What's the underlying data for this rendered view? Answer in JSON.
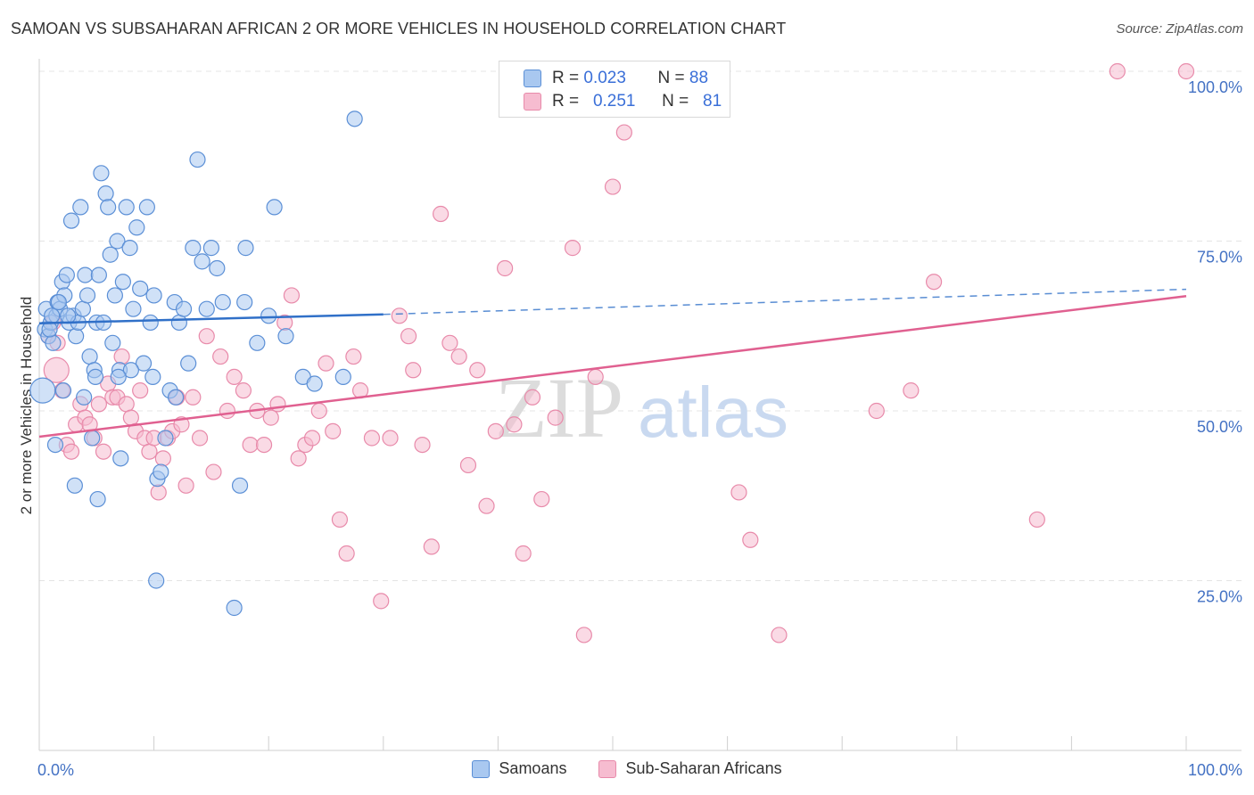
{
  "header": {
    "title": "SAMOAN VS SUBSAHARAN AFRICAN 2 OR MORE VEHICLES IN HOUSEHOLD CORRELATION CHART",
    "source": "Source: ZipAtlas.com"
  },
  "legend": {
    "rows": [
      {
        "r_label": "R =",
        "r_value": "0.023",
        "n_label": "N =",
        "n_value": "88"
      },
      {
        "r_label": "R =",
        "r_value": "0.251",
        "n_label": "N =",
        "n_value": "81"
      }
    ]
  },
  "watermark": {
    "zip": "ZIP",
    "atlas": "atlas"
  },
  "colors": {
    "samoans_fill": "#a9c8f0",
    "samoans_stroke": "#5b8fd6",
    "samoans_line": "#3070c8",
    "subsaharan_fill": "#f6bcd0",
    "subsaharan_stroke": "#e88aaa",
    "subsaharan_line": "#e06090",
    "tick_text": "#4472c4",
    "grid": "#e4e4e4"
  },
  "chart_data": {
    "type": "scatter",
    "title": "SAMOAN VS SUBSAHARAN AFRICAN 2 OR MORE VEHICLES IN HOUSEHOLD CORRELATION CHART",
    "xlabel": "",
    "ylabel": "2 or more Vehicles in Household",
    "xlim": [
      0,
      100
    ],
    "ylim": [
      0,
      100
    ],
    "x_tick_labels": [
      "0.0%",
      "100.0%"
    ],
    "y_ticks": [
      25,
      50,
      75,
      100
    ],
    "y_tick_labels": [
      "25.0%",
      "50.0%",
      "75.0%",
      "100.0%"
    ],
    "grid": true,
    "legend_position": "bottom-center",
    "series": [
      {
        "name": "Samoans",
        "r": 0.023,
        "n": 88,
        "trend": {
          "x0": 0,
          "y0": 62.9,
          "x1": 30,
          "y1": 64.2,
          "dashed_to_x": 100,
          "dashed_to_y": 67.9
        },
        "points": [
          {
            "x": 0.3,
            "y": 53,
            "big": true
          },
          {
            "x": 0.5,
            "y": 62
          },
          {
            "x": 0.8,
            "y": 61
          },
          {
            "x": 0.6,
            "y": 65
          },
          {
            "x": 1.0,
            "y": 63
          },
          {
            "x": 1.2,
            "y": 60
          },
          {
            "x": 1.5,
            "y": 64
          },
          {
            "x": 1.6,
            "y": 66
          },
          {
            "x": 1.8,
            "y": 65
          },
          {
            "x": 2.0,
            "y": 69
          },
          {
            "x": 2.2,
            "y": 67
          },
          {
            "x": 2.4,
            "y": 70
          },
          {
            "x": 2.6,
            "y": 63
          },
          {
            "x": 2.8,
            "y": 78
          },
          {
            "x": 3.0,
            "y": 64
          },
          {
            "x": 3.2,
            "y": 61
          },
          {
            "x": 3.4,
            "y": 63
          },
          {
            "x": 3.6,
            "y": 80
          },
          {
            "x": 3.8,
            "y": 65
          },
          {
            "x": 4.0,
            "y": 70
          },
          {
            "x": 4.2,
            "y": 67
          },
          {
            "x": 4.4,
            "y": 58
          },
          {
            "x": 4.6,
            "y": 46
          },
          {
            "x": 4.8,
            "y": 56
          },
          {
            "x": 5.0,
            "y": 63
          },
          {
            "x": 5.2,
            "y": 70
          },
          {
            "x": 5.4,
            "y": 85
          },
          {
            "x": 5.6,
            "y": 63
          },
          {
            "x": 5.8,
            "y": 82
          },
          {
            "x": 6.0,
            "y": 80
          },
          {
            "x": 6.2,
            "y": 73
          },
          {
            "x": 6.4,
            "y": 60
          },
          {
            "x": 6.6,
            "y": 67
          },
          {
            "x": 6.8,
            "y": 75
          },
          {
            "x": 7.0,
            "y": 56
          },
          {
            "x": 7.3,
            "y": 69
          },
          {
            "x": 7.6,
            "y": 80
          },
          {
            "x": 7.9,
            "y": 74
          },
          {
            "x": 8.2,
            "y": 65
          },
          {
            "x": 8.5,
            "y": 77
          },
          {
            "x": 8.8,
            "y": 68
          },
          {
            "x": 9.1,
            "y": 57
          },
          {
            "x": 9.4,
            "y": 80
          },
          {
            "x": 9.7,
            "y": 63
          },
          {
            "x": 10.0,
            "y": 67
          },
          {
            "x": 10.3,
            "y": 40
          },
          {
            "x": 10.6,
            "y": 41
          },
          {
            "x": 11.0,
            "y": 46
          },
          {
            "x": 11.4,
            "y": 53
          },
          {
            "x": 11.8,
            "y": 66
          },
          {
            "x": 12.2,
            "y": 63
          },
          {
            "x": 12.6,
            "y": 65
          },
          {
            "x": 13.0,
            "y": 57
          },
          {
            "x": 13.4,
            "y": 74
          },
          {
            "x": 13.8,
            "y": 87
          },
          {
            "x": 14.2,
            "y": 72
          },
          {
            "x": 14.6,
            "y": 65
          },
          {
            "x": 15.0,
            "y": 74
          },
          {
            "x": 15.5,
            "y": 71
          },
          {
            "x": 16.0,
            "y": 66
          },
          {
            "x": 17.0,
            "y": 21
          },
          {
            "x": 18.0,
            "y": 74
          },
          {
            "x": 17.5,
            "y": 39
          },
          {
            "x": 10.2,
            "y": 25
          },
          {
            "x": 1.4,
            "y": 45
          },
          {
            "x": 3.1,
            "y": 39
          },
          {
            "x": 5.1,
            "y": 37
          },
          {
            "x": 7.1,
            "y": 43
          },
          {
            "x": 8.0,
            "y": 56
          },
          {
            "x": 3.9,
            "y": 52
          },
          {
            "x": 2.1,
            "y": 53
          },
          {
            "x": 1.1,
            "y": 64
          },
          {
            "x": 0.9,
            "y": 62
          },
          {
            "x": 4.9,
            "y": 55
          },
          {
            "x": 6.9,
            "y": 55
          },
          {
            "x": 9.9,
            "y": 55
          },
          {
            "x": 11.9,
            "y": 52
          },
          {
            "x": 17.9,
            "y": 66
          },
          {
            "x": 19.0,
            "y": 60
          },
          {
            "x": 20.0,
            "y": 64
          },
          {
            "x": 20.5,
            "y": 80
          },
          {
            "x": 21.5,
            "y": 61
          },
          {
            "x": 23.0,
            "y": 55
          },
          {
            "x": 24.0,
            "y": 54
          },
          {
            "x": 26.5,
            "y": 55
          },
          {
            "x": 27.5,
            "y": 93
          },
          {
            "x": 1.7,
            "y": 66
          },
          {
            "x": 2.5,
            "y": 64
          }
        ]
      },
      {
        "name": "Sub-Saharan Africans",
        "r": 0.251,
        "n": 81,
        "trend": {
          "x0": 0,
          "y0": 46.2,
          "x1": 100,
          "y1": 66.9
        },
        "points": [
          {
            "x": 1.5,
            "y": 56,
            "big": true
          },
          {
            "x": 0.8,
            "y": 61
          },
          {
            "x": 1.2,
            "y": 63
          },
          {
            "x": 1.6,
            "y": 60
          },
          {
            "x": 2.0,
            "y": 53
          },
          {
            "x": 2.4,
            "y": 45
          },
          {
            "x": 2.8,
            "y": 44
          },
          {
            "x": 3.2,
            "y": 48
          },
          {
            "x": 3.6,
            "y": 51
          },
          {
            "x": 4.0,
            "y": 49
          },
          {
            "x": 4.4,
            "y": 48
          },
          {
            "x": 4.8,
            "y": 46
          },
          {
            "x": 5.2,
            "y": 51
          },
          {
            "x": 5.6,
            "y": 44
          },
          {
            "x": 6.0,
            "y": 54
          },
          {
            "x": 6.4,
            "y": 52
          },
          {
            "x": 6.8,
            "y": 52
          },
          {
            "x": 7.2,
            "y": 58
          },
          {
            "x": 7.6,
            "y": 51
          },
          {
            "x": 8.0,
            "y": 49
          },
          {
            "x": 8.4,
            "y": 47
          },
          {
            "x": 8.8,
            "y": 53
          },
          {
            "x": 9.2,
            "y": 46
          },
          {
            "x": 9.6,
            "y": 44
          },
          {
            "x": 10.0,
            "y": 46
          },
          {
            "x": 10.4,
            "y": 38
          },
          {
            "x": 10.8,
            "y": 43
          },
          {
            "x": 11.2,
            "y": 46
          },
          {
            "x": 11.6,
            "y": 47
          },
          {
            "x": 12.0,
            "y": 52
          },
          {
            "x": 12.4,
            "y": 48
          },
          {
            "x": 12.8,
            "y": 39
          },
          {
            "x": 13.4,
            "y": 52
          },
          {
            "x": 14.0,
            "y": 46
          },
          {
            "x": 14.6,
            "y": 61
          },
          {
            "x": 15.2,
            "y": 41
          },
          {
            "x": 15.8,
            "y": 58
          },
          {
            "x": 16.4,
            "y": 50
          },
          {
            "x": 17.0,
            "y": 55
          },
          {
            "x": 17.8,
            "y": 53
          },
          {
            "x": 18.4,
            "y": 45
          },
          {
            "x": 19.0,
            "y": 50
          },
          {
            "x": 19.6,
            "y": 45
          },
          {
            "x": 20.2,
            "y": 49
          },
          {
            "x": 20.8,
            "y": 51
          },
          {
            "x": 21.4,
            "y": 63
          },
          {
            "x": 22.0,
            "y": 67
          },
          {
            "x": 22.6,
            "y": 43
          },
          {
            "x": 23.2,
            "y": 45
          },
          {
            "x": 23.8,
            "y": 46
          },
          {
            "x": 24.4,
            "y": 50
          },
          {
            "x": 25.0,
            "y": 57
          },
          {
            "x": 25.6,
            "y": 47
          },
          {
            "x": 26.2,
            "y": 34
          },
          {
            "x": 26.8,
            "y": 29
          },
          {
            "x": 27.4,
            "y": 58
          },
          {
            "x": 28.0,
            "y": 53
          },
          {
            "x": 29.0,
            "y": 46
          },
          {
            "x": 29.8,
            "y": 22
          },
          {
            "x": 30.6,
            "y": 46
          },
          {
            "x": 31.4,
            "y": 64
          },
          {
            "x": 32.2,
            "y": 61
          },
          {
            "x": 32.6,
            "y": 56
          },
          {
            "x": 33.4,
            "y": 45
          },
          {
            "x": 34.2,
            "y": 30
          },
          {
            "x": 35.0,
            "y": 79
          },
          {
            "x": 35.8,
            "y": 60
          },
          {
            "x": 36.6,
            "y": 58
          },
          {
            "x": 37.4,
            "y": 42
          },
          {
            "x": 38.2,
            "y": 56
          },
          {
            "x": 39.0,
            "y": 36
          },
          {
            "x": 39.8,
            "y": 47
          },
          {
            "x": 40.6,
            "y": 71
          },
          {
            "x": 41.4,
            "y": 48
          },
          {
            "x": 42.2,
            "y": 29
          },
          {
            "x": 43.0,
            "y": 52
          },
          {
            "x": 43.8,
            "y": 37
          },
          {
            "x": 45.0,
            "y": 49
          },
          {
            "x": 46.5,
            "y": 74
          },
          {
            "x": 47.5,
            "y": 17
          },
          {
            "x": 48.5,
            "y": 55
          },
          {
            "x": 50.0,
            "y": 83
          },
          {
            "x": 51.0,
            "y": 91
          },
          {
            "x": 61.0,
            "y": 38
          },
          {
            "x": 62.0,
            "y": 31
          },
          {
            "x": 64.5,
            "y": 17
          },
          {
            "x": 73.0,
            "y": 50
          },
          {
            "x": 76.0,
            "y": 53
          },
          {
            "x": 78.0,
            "y": 69
          },
          {
            "x": 87.0,
            "y": 34
          },
          {
            "x": 94.0,
            "y": 100
          },
          {
            "x": 100.0,
            "y": 100
          }
        ]
      }
    ]
  }
}
